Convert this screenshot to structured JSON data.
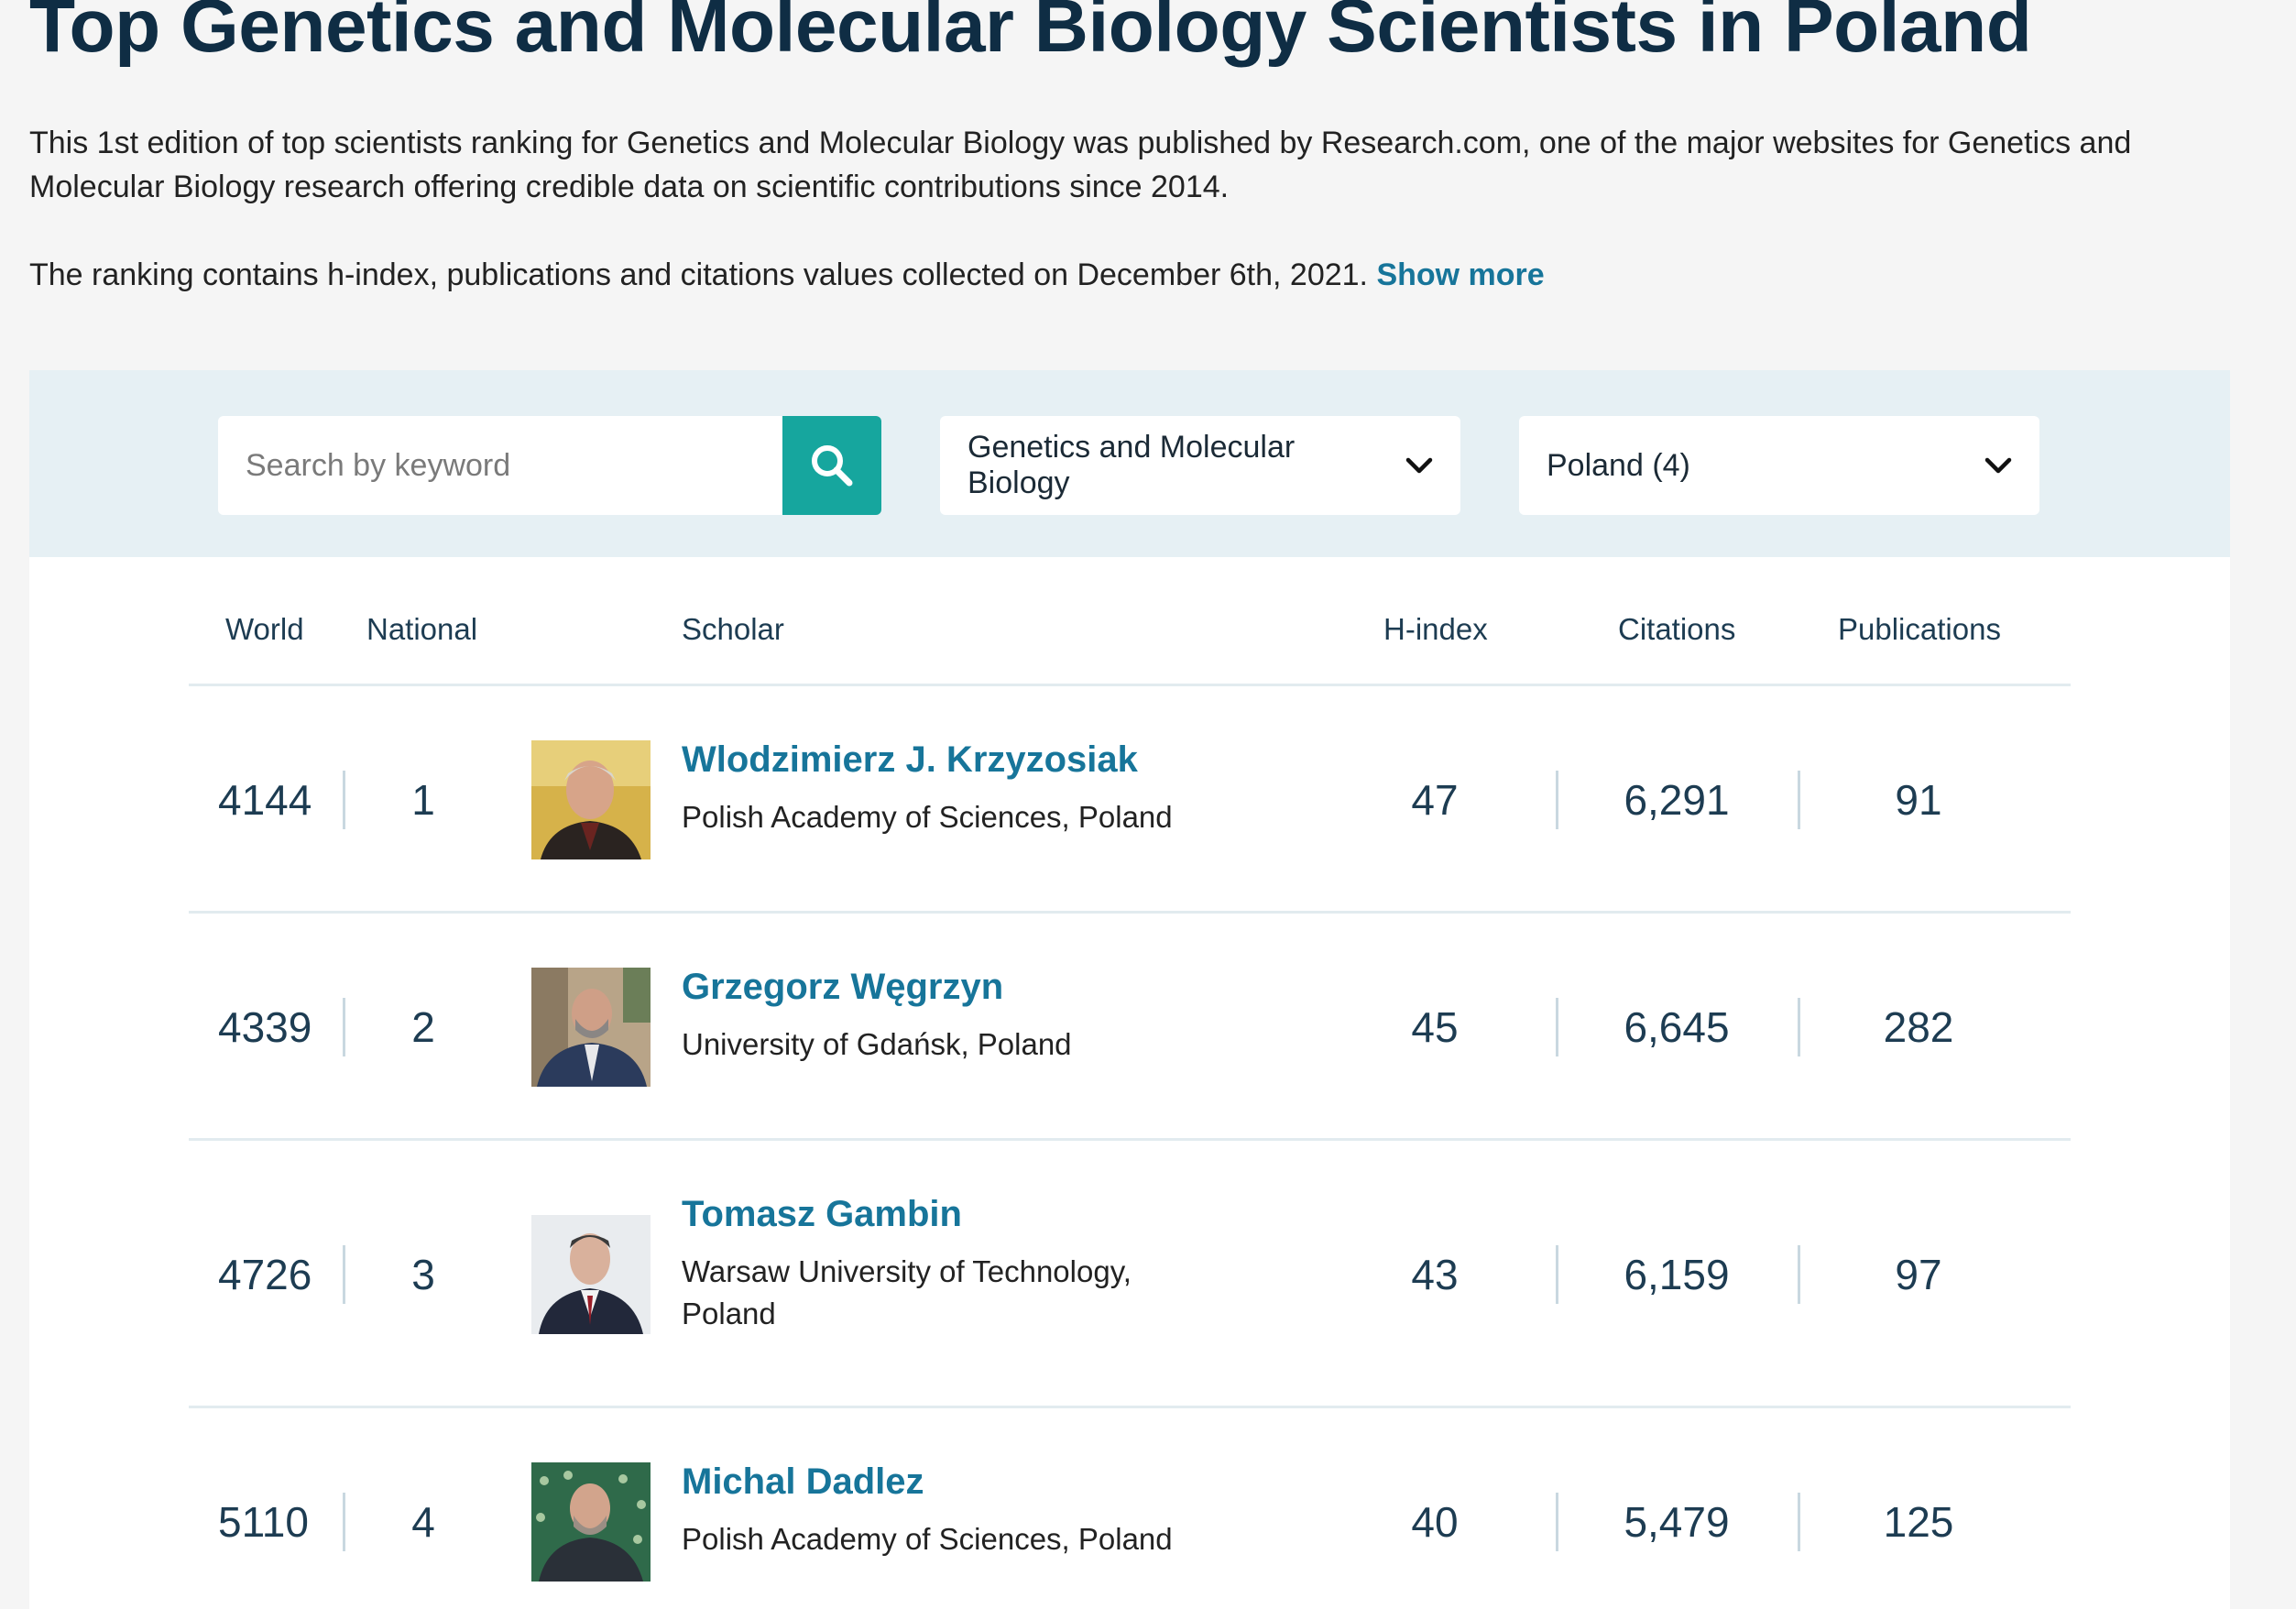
{
  "page": {
    "title": "Top Genetics and Molecular Biology Scientists in Poland",
    "intro_1": "This 1st edition of top scientists ranking for Genetics and Molecular Biology was published by Research.com, one of the major websites for Genetics and Molecular Biology research offering credible data on scientific contributions since 2014.",
    "intro_2": "The ranking contains h-index, publications and citations values collected on December 6th, 2021.",
    "show_more": "Show more"
  },
  "filters": {
    "search_placeholder": "Search by keyword",
    "discipline": "Genetics and Molecular Biology",
    "country": "Poland (4)",
    "accent_color": "#16a69e"
  },
  "table": {
    "headers": {
      "world": "World",
      "national": "National",
      "scholar": "Scholar",
      "hindex": "H-index",
      "citations": "Citations",
      "publications": "Publications"
    },
    "rows": [
      {
        "world": "4144",
        "national": "1",
        "name": "Wlodzimierz J. Krzyzosiak",
        "affiliation": "Polish Academy of Sciences, Poland",
        "hindex": "47",
        "citations": "6,291",
        "publications": "91"
      },
      {
        "world": "4339",
        "national": "2",
        "name": "Grzegorz Węgrzyn",
        "affiliation": "University of Gdańsk, Poland",
        "hindex": "45",
        "citations": "6,645",
        "publications": "282"
      },
      {
        "world": "4726",
        "national": "3",
        "name": "Tomasz Gambin",
        "affiliation": "Warsaw University of Technology, Poland",
        "hindex": "43",
        "citations": "6,159",
        "publications": "97"
      },
      {
        "world": "5110",
        "national": "4",
        "name": "Michal Dadlez",
        "affiliation": "Polish Academy of Sciences, Poland",
        "hindex": "40",
        "citations": "5,479",
        "publications": "125"
      }
    ]
  }
}
